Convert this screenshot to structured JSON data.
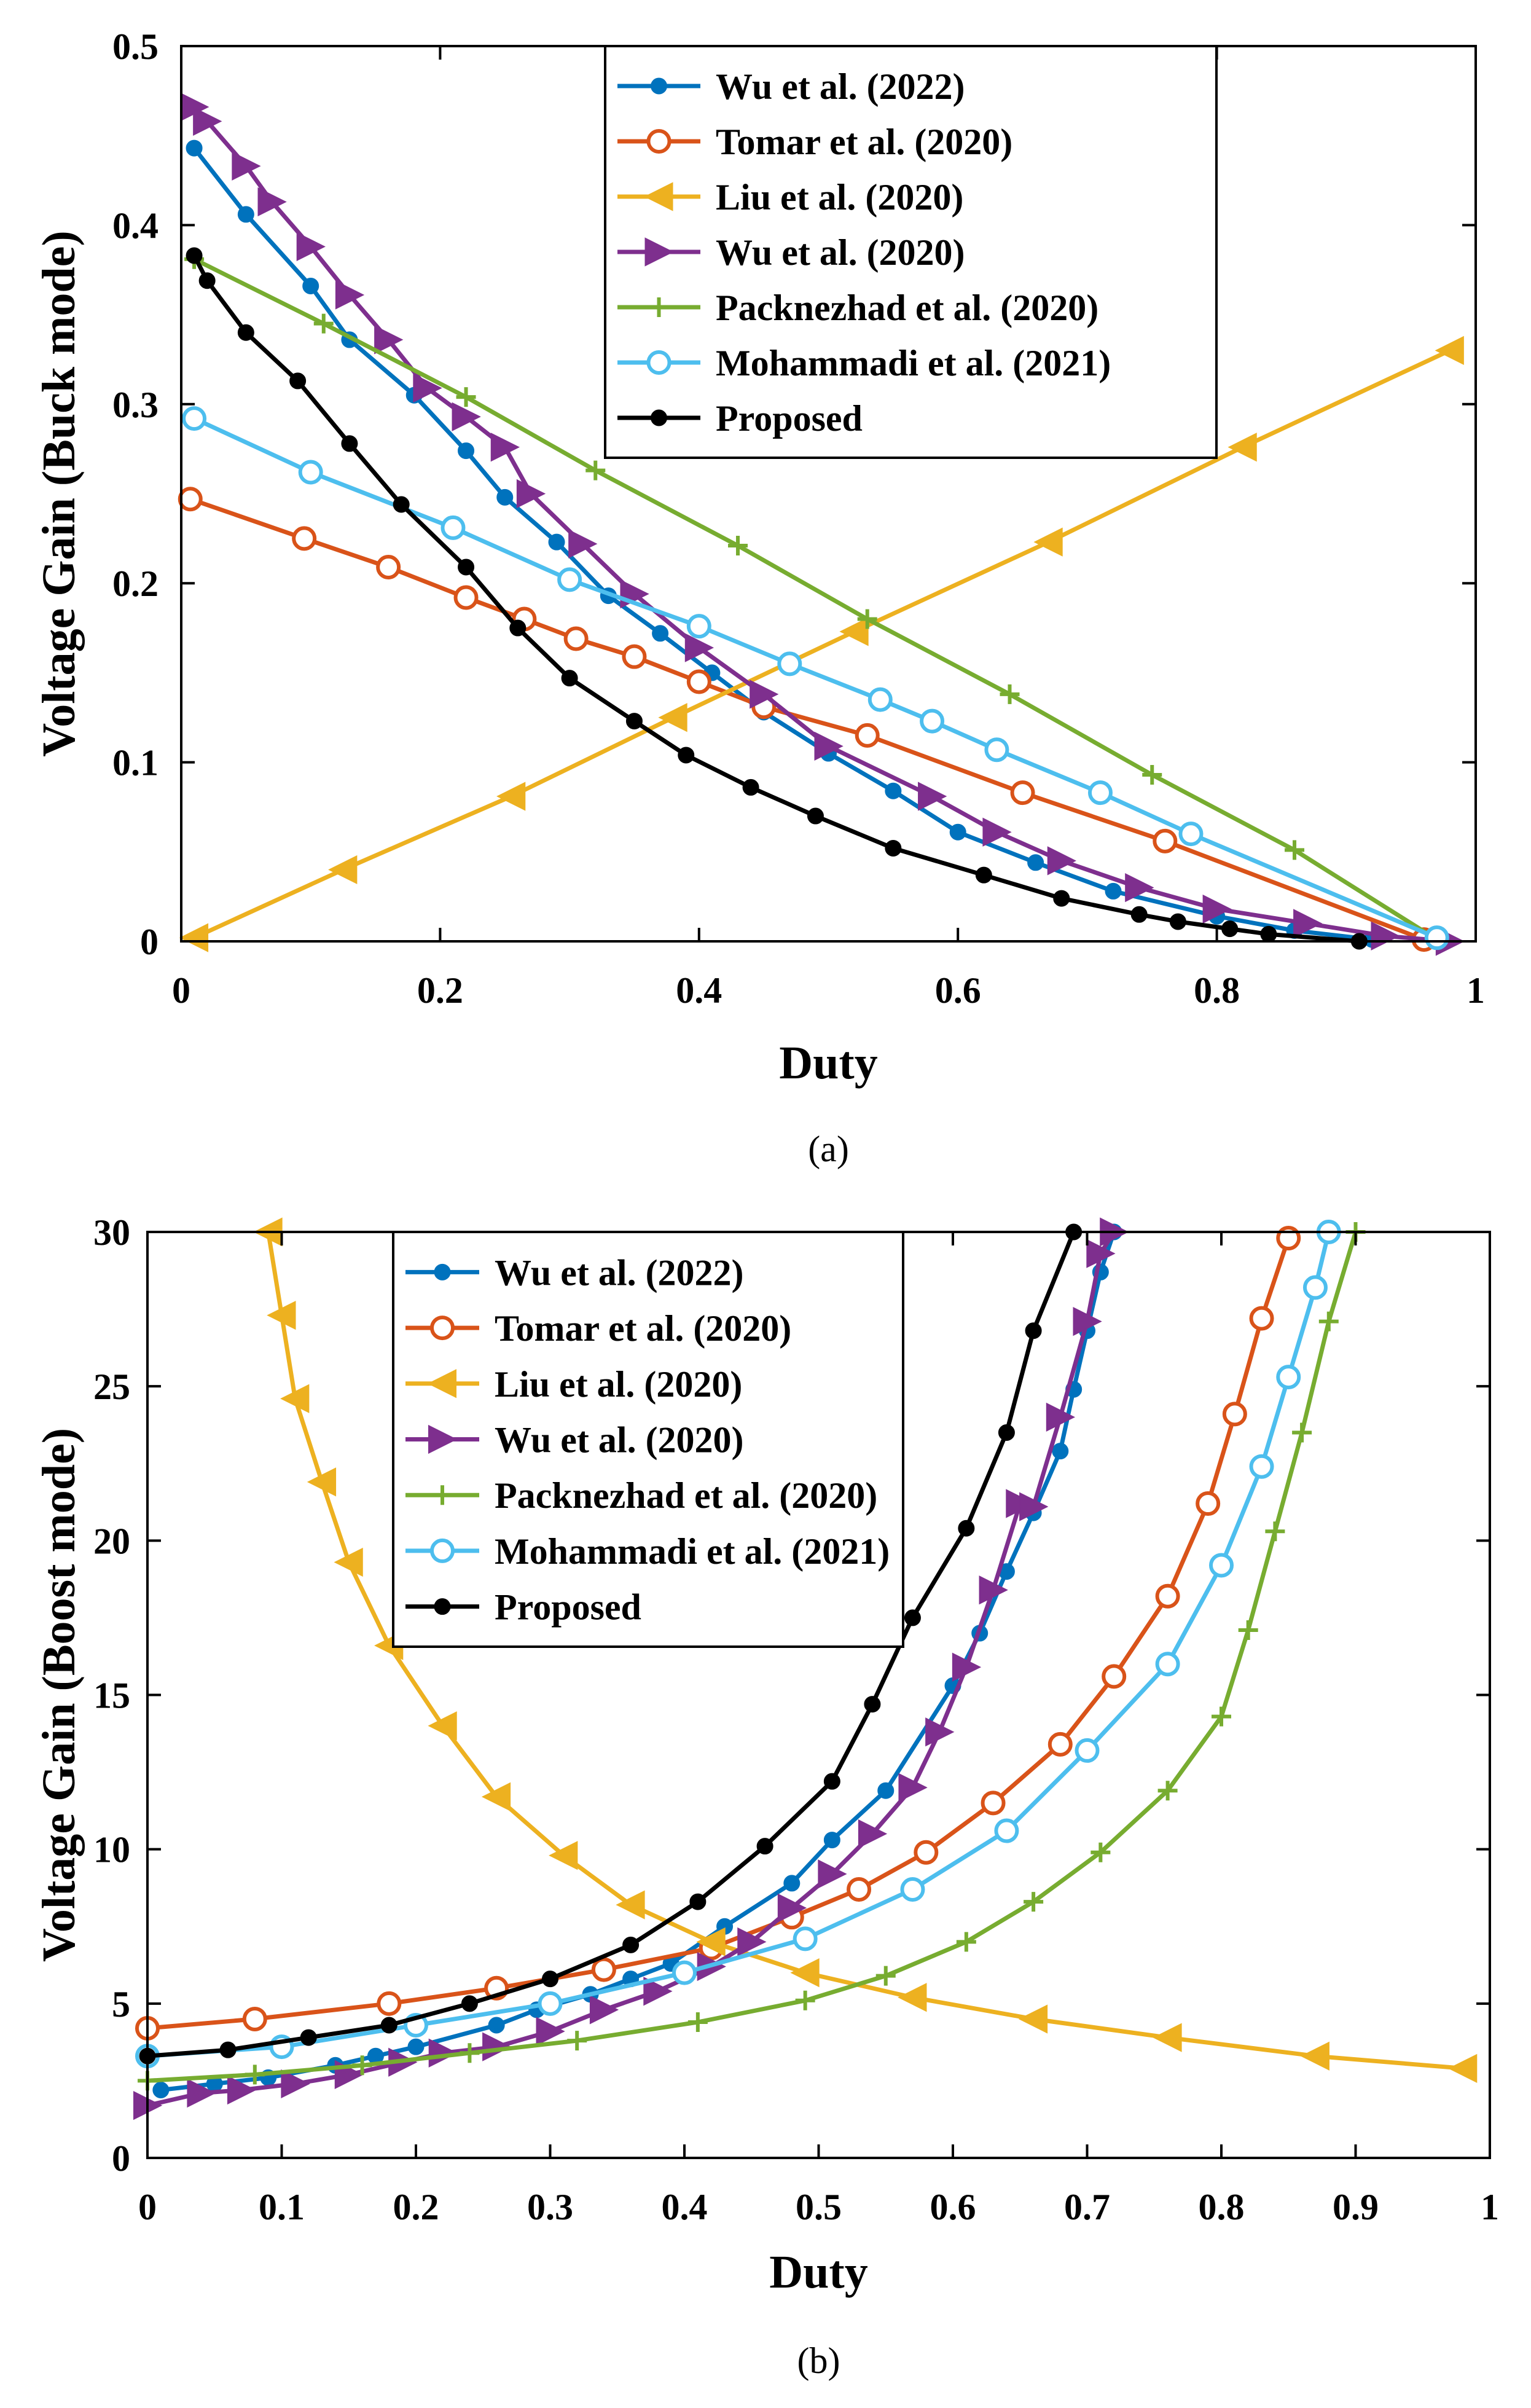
{
  "chart_data": [
    {
      "type": "line",
      "panel": "a",
      "caption": "(a)",
      "xlabel": "Duty",
      "ylabel": "Voltage Gain (Buck mode)",
      "xlim": [
        0,
        1
      ],
      "ylim": [
        0,
        0.5
      ],
      "xticks": [
        0,
        0.2,
        0.4,
        0.6,
        0.8,
        1
      ],
      "xtick_labels": [
        "0",
        "0.2",
        "0.4",
        "0.6",
        "0.8",
        "1"
      ],
      "yticks": [
        0,
        0.1,
        0.2,
        0.3,
        0.4,
        0.5
      ],
      "ytick_labels": [
        "0",
        "0.1",
        "0.2",
        "0.3",
        "0.4",
        "0.5"
      ],
      "legend_position": "top-right",
      "series": [
        {
          "name": "Wu et al. (2022)",
          "color": "#0072BD",
          "marker": "dot",
          "x": [
            0.01,
            0.05,
            0.1,
            0.13,
            0.18,
            0.22,
            0.25,
            0.29,
            0.33,
            0.37,
            0.41,
            0.45,
            0.5,
            0.55,
            0.6,
            0.66,
            0.72,
            0.8,
            0.86,
            0.92
          ],
          "y": [
            0.443,
            0.406,
            0.366,
            0.336,
            0.305,
            0.274,
            0.248,
            0.223,
            0.193,
            0.172,
            0.15,
            0.128,
            0.105,
            0.084,
            0.061,
            0.044,
            0.028,
            0.014,
            0.006,
            0.001
          ]
        },
        {
          "name": "Tomar et al. (2020)",
          "color": "#D95319",
          "marker": "circle",
          "x": [
            0.007,
            0.095,
            0.16,
            0.22,
            0.265,
            0.305,
            0.35,
            0.4,
            0.45,
            0.53,
            0.65,
            0.76,
            0.96
          ],
          "y": [
            0.247,
            0.225,
            0.209,
            0.192,
            0.18,
            0.169,
            0.159,
            0.145,
            0.131,
            0.115,
            0.083,
            0.056,
            0.001
          ]
        },
        {
          "name": "Liu et al. (2020)",
          "color": "#EDB120",
          "marker": "triangle-left",
          "x": [
            0.01,
            0.125,
            0.255,
            0.38,
            0.52,
            0.67,
            0.82,
            0.98
          ],
          "y": [
            0.002,
            0.04,
            0.081,
            0.125,
            0.173,
            0.223,
            0.276,
            0.33
          ]
        },
        {
          "name": "Wu et al. (2020)",
          "color": "#7E2F8E",
          "marker": "triangle-right",
          "x": [
            0.01,
            0.02,
            0.05,
            0.07,
            0.1,
            0.13,
            0.16,
            0.19,
            0.22,
            0.25,
            0.27,
            0.31,
            0.35,
            0.4,
            0.45,
            0.5,
            0.58,
            0.63,
            0.68,
            0.74,
            0.8,
            0.87,
            0.93,
            0.98
          ],
          "y": [
            0.466,
            0.458,
            0.433,
            0.413,
            0.388,
            0.361,
            0.336,
            0.309,
            0.293,
            0.276,
            0.25,
            0.222,
            0.194,
            0.164,
            0.138,
            0.109,
            0.081,
            0.061,
            0.045,
            0.03,
            0.018,
            0.01,
            0.003,
            0.0
          ]
        },
        {
          "name": "Packnezhad et al. (2020)",
          "color": "#77AC30",
          "marker": "plus",
          "x": [
            0.01,
            0.11,
            0.22,
            0.32,
            0.43,
            0.53,
            0.64,
            0.75,
            0.86,
            0.97
          ],
          "y": [
            0.381,
            0.345,
            0.304,
            0.263,
            0.221,
            0.18,
            0.138,
            0.093,
            0.051,
            0.001
          ]
        },
        {
          "name": "Mohammadi et al. (2021)",
          "color": "#4DBEEE",
          "marker": "circle",
          "x": [
            0.01,
            0.1,
            0.21,
            0.3,
            0.4,
            0.47,
            0.54,
            0.58,
            0.63,
            0.71,
            0.78,
            0.97
          ],
          "y": [
            0.292,
            0.262,
            0.231,
            0.202,
            0.176,
            0.155,
            0.135,
            0.123,
            0.107,
            0.083,
            0.06,
            0.002
          ]
        },
        {
          "name": "Proposed",
          "color": "#000000",
          "marker": "dot",
          "x": [
            0.01,
            0.02,
            0.05,
            0.09,
            0.13,
            0.17,
            0.22,
            0.26,
            0.3,
            0.35,
            0.39,
            0.44,
            0.49,
            0.55,
            0.62,
            0.68,
            0.74,
            0.77,
            0.81,
            0.84,
            0.91
          ],
          "y": [
            0.383,
            0.369,
            0.34,
            0.313,
            0.278,
            0.244,
            0.209,
            0.175,
            0.147,
            0.123,
            0.104,
            0.086,
            0.07,
            0.052,
            0.037,
            0.024,
            0.015,
            0.011,
            0.007,
            0.004,
            0.0
          ]
        }
      ]
    },
    {
      "type": "line",
      "panel": "b",
      "caption": "(b)",
      "xlabel": "Duty",
      "ylabel": "Voltage Gain (Boost mode)",
      "xlim": [
        0,
        1
      ],
      "ylim": [
        0,
        30
      ],
      "xticks": [
        0,
        0.1,
        0.2,
        0.3,
        0.4,
        0.5,
        0.6,
        0.7,
        0.8,
        0.9,
        1
      ],
      "xtick_labels": [
        "0",
        "0.1",
        "0.2",
        "0.3",
        "0.4",
        "0.5",
        "0.6",
        "0.7",
        "0.8",
        "0.9",
        "1"
      ],
      "yticks": [
        0,
        5,
        10,
        15,
        20,
        25,
        30
      ],
      "ytick_labels": [
        "0",
        "5",
        "10",
        "15",
        "20",
        "25",
        "30"
      ],
      "legend_position": "top-left",
      "series": [
        {
          "name": "Wu et al. (2022)",
          "color": "#0072BD",
          "marker": "dot",
          "x": [
            0.01,
            0.05,
            0.09,
            0.14,
            0.17,
            0.2,
            0.26,
            0.29,
            0.33,
            0.36,
            0.39,
            0.43,
            0.48,
            0.51,
            0.55,
            0.6,
            0.62,
            0.64,
            0.66,
            0.68,
            0.69,
            0.7,
            0.71,
            0.72
          ],
          "y": [
            2.2,
            2.4,
            2.6,
            3.0,
            3.3,
            3.6,
            4.3,
            4.8,
            5.3,
            5.8,
            6.3,
            7.5,
            8.9,
            10.3,
            11.9,
            15.3,
            17.0,
            19.0,
            20.9,
            22.9,
            24.9,
            26.8,
            28.7,
            30.0
          ]
        },
        {
          "name": "Tomar et al. (2020)",
          "color": "#D95319",
          "marker": "circle",
          "x": [
            0.0,
            0.08,
            0.18,
            0.26,
            0.34,
            0.42,
            0.48,
            0.53,
            0.58,
            0.63,
            0.68,
            0.72,
            0.76,
            0.79,
            0.81,
            0.83,
            0.85
          ],
          "y": [
            4.2,
            4.5,
            5.0,
            5.5,
            6.1,
            6.8,
            7.8,
            8.7,
            9.9,
            11.5,
            13.4,
            15.6,
            18.2,
            21.2,
            24.1,
            27.2,
            29.8
          ]
        },
        {
          "name": "Liu et al. (2020)",
          "color": "#EDB120",
          "marker": "triangle-left",
          "x": [
            0.09,
            0.1,
            0.11,
            0.13,
            0.15,
            0.18,
            0.22,
            0.26,
            0.31,
            0.36,
            0.42,
            0.49,
            0.57,
            0.66,
            0.76,
            0.87,
            0.98
          ],
          "y": [
            30.0,
            27.3,
            24.6,
            21.9,
            19.3,
            16.6,
            14.0,
            11.7,
            9.8,
            8.2,
            7.0,
            6.0,
            5.2,
            4.5,
            3.9,
            3.3,
            2.9
          ]
        },
        {
          "name": "Wu et al. (2020)",
          "color": "#7E2F8E",
          "marker": "triangle-right",
          "x": [
            0.0,
            0.04,
            0.07,
            0.11,
            0.15,
            0.19,
            0.22,
            0.26,
            0.3,
            0.34,
            0.38,
            0.42,
            0.45,
            0.48,
            0.51,
            0.54,
            0.57,
            0.59,
            0.61,
            0.63,
            0.65,
            0.66,
            0.68,
            0.7,
            0.71,
            0.72
          ],
          "y": [
            1.7,
            2.1,
            2.2,
            2.4,
            2.7,
            3.1,
            3.4,
            3.6,
            4.1,
            4.8,
            5.4,
            6.2,
            7.0,
            8.1,
            9.2,
            10.5,
            12.0,
            13.8,
            15.9,
            18.4,
            21.2,
            21.1,
            24.0,
            27.1,
            29.3,
            30.0
          ]
        },
        {
          "name": "Packnezhad et al. (2020)",
          "color": "#77AC30",
          "marker": "plus",
          "x": [
            0.0,
            0.08,
            0.16,
            0.24,
            0.32,
            0.41,
            0.49,
            0.55,
            0.61,
            0.66,
            0.71,
            0.76,
            0.8,
            0.82,
            0.84,
            0.86,
            0.88,
            0.9
          ],
          "y": [
            2.5,
            2.7,
            3.0,
            3.4,
            3.8,
            4.4,
            5.1,
            5.9,
            7.0,
            8.3,
            9.9,
            11.9,
            14.3,
            17.1,
            20.3,
            23.5,
            27.1,
            30.0
          ]
        },
        {
          "name": "Mohammadi et al. (2021)",
          "color": "#4DBEEE",
          "marker": "circle",
          "x": [
            0.0,
            0.1,
            0.2,
            0.3,
            0.4,
            0.49,
            0.57,
            0.64,
            0.7,
            0.76,
            0.8,
            0.83,
            0.85,
            0.87,
            0.88
          ],
          "y": [
            3.3,
            3.6,
            4.3,
            5.0,
            6.0,
            7.1,
            8.7,
            10.6,
            13.2,
            16.0,
            19.2,
            22.4,
            25.3,
            28.2,
            30.0
          ]
        },
        {
          "name": "Proposed",
          "color": "#000000",
          "marker": "dot",
          "x": [
            0.0,
            0.06,
            0.12,
            0.18,
            0.24,
            0.3,
            0.36,
            0.41,
            0.46,
            0.51,
            0.54,
            0.57,
            0.61,
            0.64,
            0.66,
            0.69
          ],
          "y": [
            3.3,
            3.5,
            3.9,
            4.3,
            5.0,
            5.8,
            6.9,
            8.3,
            10.1,
            12.2,
            14.7,
            17.5,
            20.4,
            23.5,
            26.8,
            30.0
          ]
        }
      ]
    }
  ]
}
